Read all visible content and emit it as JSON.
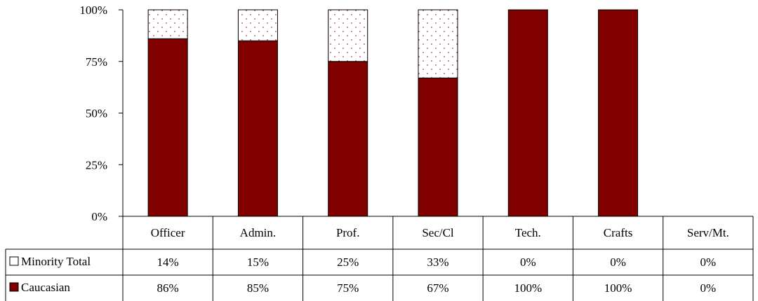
{
  "chart_data": {
    "type": "bar",
    "stacked": true,
    "categories": [
      "Officer",
      "Admin.",
      "Prof.",
      "Sec/Cl",
      "Tech.",
      "Crafts",
      "Serv/Mt."
    ],
    "series": [
      {
        "name": "Caucasian",
        "values": [
          86,
          85,
          75,
          67,
          100,
          100,
          0
        ],
        "color": "#800000",
        "pattern": "solid"
      },
      {
        "name": "Minority Total",
        "values": [
          14,
          15,
          25,
          33,
          0,
          0,
          0
        ],
        "color": "#ffffff",
        "pattern": "dotted"
      }
    ],
    "ylim": [
      0,
      100
    ],
    "yticks": [
      "0%",
      "25%",
      "50%",
      "75%",
      "100%"
    ],
    "table_labels": {
      "minority": [
        "14%",
        "15%",
        "25%",
        "33%",
        "0%",
        "0%",
        "0%"
      ],
      "caucasian": [
        "86%",
        "85%",
        "75%",
        "67%",
        "100%",
        "100%",
        "0%"
      ]
    },
    "legend_placement": "data-table-rows",
    "grid": false
  }
}
